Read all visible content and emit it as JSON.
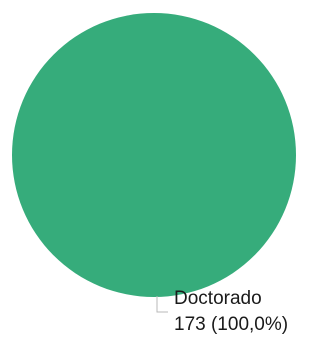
{
  "chart_data": {
    "type": "pie",
    "title": "",
    "slices": [
      {
        "label": "Doctorado",
        "value": 173,
        "percent_text": "173 (100,0%)",
        "color": "#36ac7b"
      }
    ],
    "legend": "none"
  }
}
